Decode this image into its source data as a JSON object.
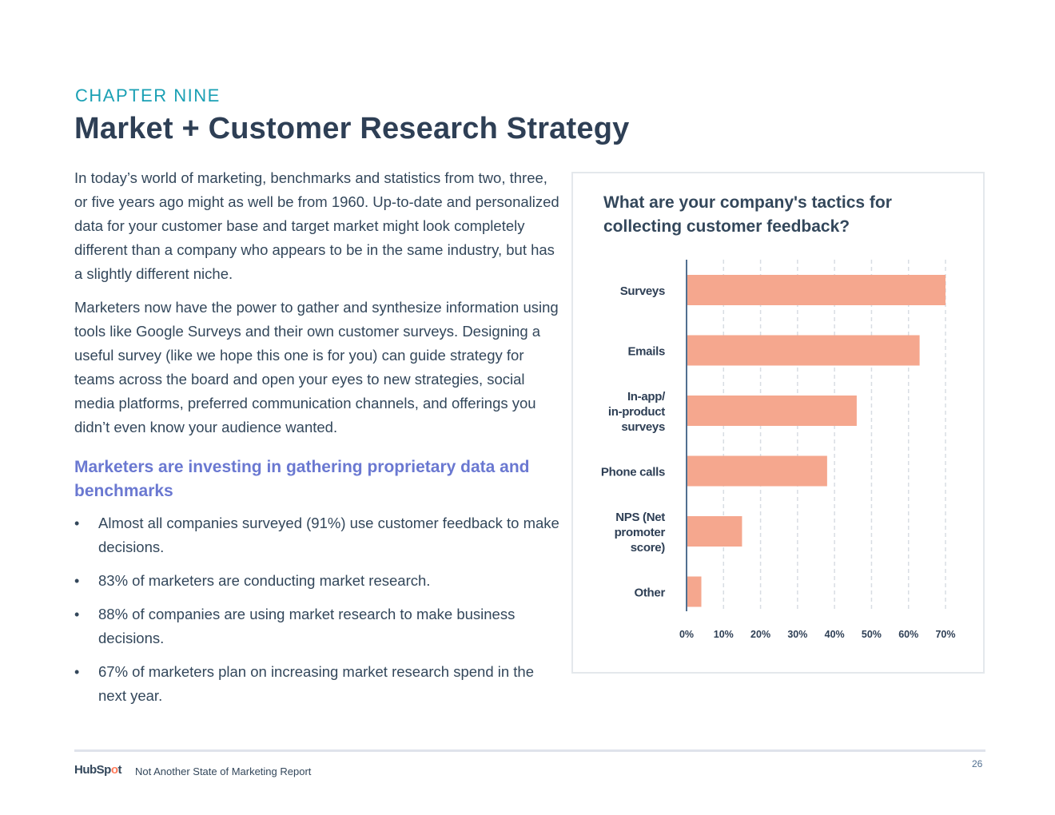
{
  "header": {
    "chapter": "CHAPTER NINE",
    "title": "Market + Customer Research Strategy"
  },
  "body": {
    "paragraphs": [
      "In today’s world of marketing, benchmarks and statistics from two, three, or five years ago might as well be from 1960. Up-to-date and personalized data for your customer base and target market might look completely different than a company who appears to be in the same industry, but has a slightly different niche.",
      "Marketers now have the power to gather and synthesize information using tools like Google Surveys and their own customer surveys. Designing a useful survey (like we hope this one is for you) can guide strategy for teams across the board and open your eyes to new strategies, social media platforms, preferred communication channels, and offerings you didn’t even know your audience wanted."
    ],
    "subheading": "Marketers are investing in gathering proprietary data and benchmarks",
    "bullet_glyph": "•",
    "bullets": [
      "Almost all companies surveyed (91%) use customer feedback to make decisions.",
      "83% of marketers are conducting market research.",
      "88% of companies are using market research to make business decisions.",
      "67% of marketers plan on increasing market research spend in the next year."
    ]
  },
  "chart_data": {
    "type": "bar",
    "orientation": "horizontal",
    "title": "What are your company's tactics for collecting customer feedback?",
    "categories": [
      [
        "Surveys"
      ],
      [
        "Emails"
      ],
      [
        "In-app/",
        "in-product",
        "surveys"
      ],
      [
        "Phone calls"
      ],
      [
        "NPS (Net",
        "promoter",
        "score)"
      ],
      [
        "Other"
      ]
    ],
    "values": [
      70,
      63,
      46,
      38,
      15,
      4
    ],
    "xlim": [
      0,
      70
    ],
    "xticks": [
      0,
      10,
      20,
      30,
      40,
      50,
      60,
      70
    ],
    "xtick_labels": [
      "0%",
      "10%",
      "20%",
      "30%",
      "40%",
      "50%",
      "60%",
      "70%"
    ],
    "grid": true,
    "bar_color": "#f5a78e",
    "grid_color": "#d8dde3",
    "axis_color": "#516f90"
  },
  "footer": {
    "logo_pre": "HubSp",
    "logo_mark": "o",
    "logo_post": "t",
    "text": "Not Another State of Marketing Report",
    "page_number": "26"
  }
}
